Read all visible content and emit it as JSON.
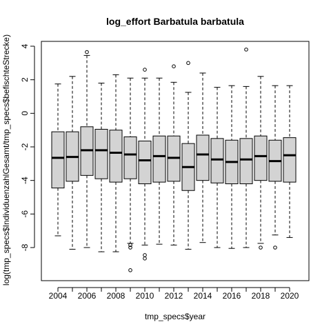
{
  "chart_data": {
    "type": "boxplot",
    "title": "log_effort Barbatula barbatula",
    "xlabel": "tmp_specs$year",
    "ylabel": "log(tmp_specs$IndividuenzahlGesamt/tmp_specs$befischteStrecke)",
    "ylim": [
      -9.7,
      4.5
    ],
    "y_ticks": [
      4,
      2,
      0,
      -2,
      -4,
      -6,
      -8
    ],
    "x_tick_labels": [
      "2004",
      "2006",
      "2008",
      "2010",
      "2012",
      "2014",
      "2016",
      "2018",
      "2020"
    ],
    "grid": false,
    "box_fill": "#d3d3d3",
    "boxes": [
      {
        "year": 2004,
        "lower_whisker": -7.3,
        "q1": -4.45,
        "median": -2.65,
        "q3": -1.1,
        "upper_whisker": 1.75,
        "outliers": []
      },
      {
        "year": 2005,
        "lower_whisker": -8.1,
        "q1": -4.05,
        "median": -2.6,
        "q3": -1.1,
        "upper_whisker": 2.2,
        "outliers": []
      },
      {
        "year": 2006,
        "lower_whisker": -8.0,
        "q1": -3.7,
        "median": -2.2,
        "q3": -0.8,
        "upper_whisker": 3.45,
        "outliers": [
          3.65
        ]
      },
      {
        "year": 2007,
        "lower_whisker": -8.25,
        "q1": -3.9,
        "median": -2.2,
        "q3": -0.95,
        "upper_whisker": 1.8,
        "outliers": []
      },
      {
        "year": 2008,
        "lower_whisker": -8.25,
        "q1": -4.1,
        "median": -2.35,
        "q3": -1.0,
        "upper_whisker": 2.3,
        "outliers": []
      },
      {
        "year": 2009,
        "lower_whisker": -7.75,
        "q1": -3.9,
        "median": -2.45,
        "q3": -1.4,
        "upper_whisker": 2.1,
        "outliers": [
          -7.85,
          -8.0,
          -9.35
        ]
      },
      {
        "year": 2010,
        "lower_whisker": -7.85,
        "q1": -4.2,
        "median": -2.8,
        "q3": -1.65,
        "upper_whisker": 2.1,
        "outliers": [
          -8.45,
          -8.65,
          2.6
        ]
      },
      {
        "year": 2011,
        "lower_whisker": -7.8,
        "q1": -4.1,
        "median": -2.55,
        "q3": -1.35,
        "upper_whisker": 2.1,
        "outliers": []
      },
      {
        "year": 2012,
        "lower_whisker": -7.85,
        "q1": -4.05,
        "median": -2.65,
        "q3": -1.35,
        "upper_whisker": 1.85,
        "outliers": [
          2.8
        ]
      },
      {
        "year": 2013,
        "lower_whisker": -8.1,
        "q1": -4.6,
        "median": -3.2,
        "q3": -1.8,
        "upper_whisker": 1.25,
        "outliers": [
          3.0
        ]
      },
      {
        "year": 2014,
        "lower_whisker": -7.7,
        "q1": -4.0,
        "median": -2.45,
        "q3": -1.3,
        "upper_whisker": 2.4,
        "outliers": []
      },
      {
        "year": 2015,
        "lower_whisker": -8.0,
        "q1": -4.15,
        "median": -2.75,
        "q3": -1.5,
        "upper_whisker": 1.55,
        "outliers": []
      },
      {
        "year": 2016,
        "lower_whisker": -8.05,
        "q1": -4.2,
        "median": -2.9,
        "q3": -1.6,
        "upper_whisker": 1.65,
        "outliers": []
      },
      {
        "year": 2017,
        "lower_whisker": -8.0,
        "q1": -4.2,
        "median": -2.75,
        "q3": -1.5,
        "upper_whisker": 1.6,
        "outliers": [
          3.8
        ]
      },
      {
        "year": 2018,
        "lower_whisker": -7.75,
        "q1": -4.0,
        "median": -2.55,
        "q3": -1.35,
        "upper_whisker": 2.2,
        "outliers": [
          -8.0
        ]
      },
      {
        "year": 2019,
        "lower_whisker": -7.25,
        "q1": -4.05,
        "median": -2.85,
        "q3": -1.6,
        "upper_whisker": 1.65,
        "outliers": [
          -8.0
        ]
      },
      {
        "year": 2020,
        "lower_whisker": -7.4,
        "q1": -4.1,
        "median": -2.5,
        "q3": -1.45,
        "upper_whisker": 1.65,
        "outliers": []
      }
    ]
  }
}
